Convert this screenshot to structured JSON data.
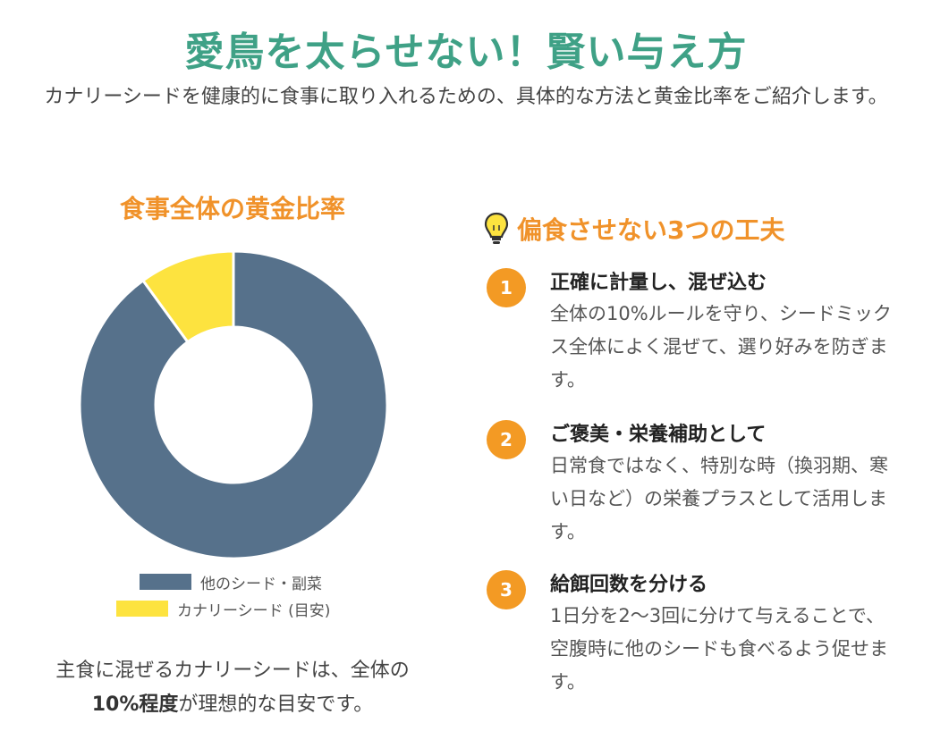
{
  "header": {
    "title": "愛鳥を太らせない！賢い与え方",
    "subtitle": "カナリーシードを健康的に食事に取り入れるための、具体的な方法と黄金比率をご紹介します。"
  },
  "chart_data": {
    "type": "pie",
    "style": "donut",
    "title": "食事全体の黄金比率",
    "categories": [
      "他のシード・副菜",
      "カナリーシード (目安)"
    ],
    "values": [
      90,
      10
    ],
    "colors": [
      "#56718b",
      "#fde33f"
    ],
    "legend_position": "bottom"
  },
  "chart_note": {
    "line1": "主食に混ぜるカナリーシードは、全体の",
    "highlight": "10%程度",
    "line2_rest": "が理想的な目安です。"
  },
  "tips": {
    "icon": "lightbulb-icon",
    "heading": "偏食させない3つの工夫",
    "items": [
      {
        "number": "1",
        "title": "正確に計量し、混ぜ込む",
        "description": "全体の10%ルールを守り、シードミックス全体によく混ぜて、選り好みを防ぎます。"
      },
      {
        "number": "2",
        "title": "ご褒美・栄養補助として",
        "description": "日常食ではなく、特別な時（換羽期、寒い日など）の栄養プラスとして活用します。"
      },
      {
        "number": "3",
        "title": "給餌回数を分ける",
        "description": "1日分を2〜3回に分けて与えることで、空腹時に他のシードも食べるよう促せます。"
      }
    ]
  },
  "colors": {
    "title": "#3fa186",
    "accent": "#f0922a",
    "badge": "#f39a24"
  }
}
